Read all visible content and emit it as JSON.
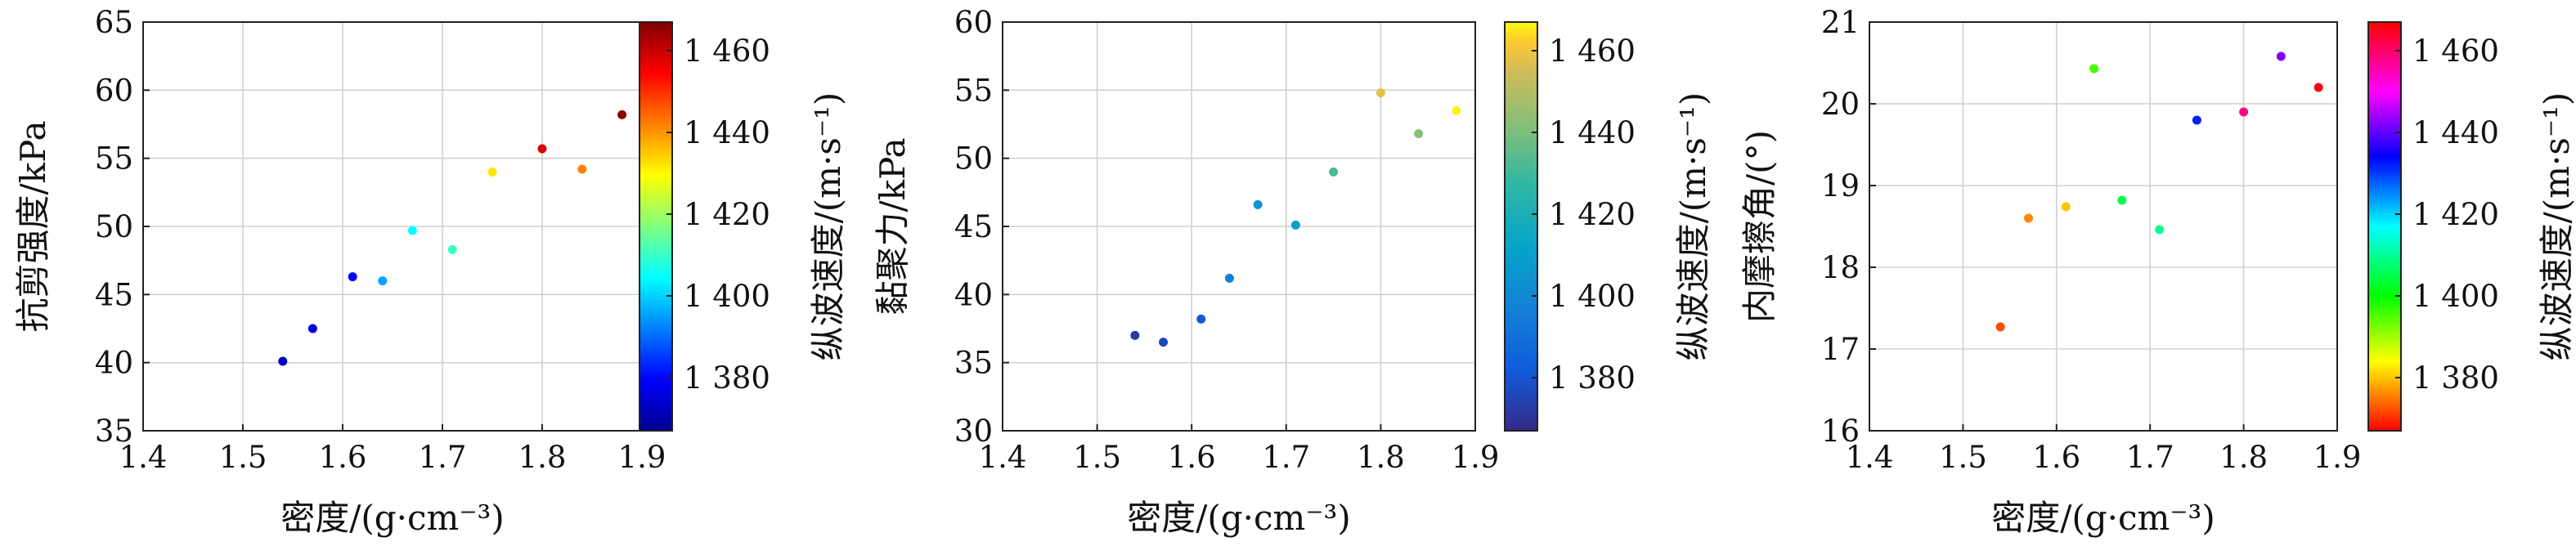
{
  "chart_data": [
    {
      "type": "scatter",
      "xlabel": "密度/(g·cm⁻³)",
      "ylabel": "抗剪强度/kPa",
      "xlim": [
        1.4,
        1.9
      ],
      "ylim": [
        35,
        65
      ],
      "xticks": [
        "1.4",
        "1.5",
        "1.6",
        "1.7",
        "1.8",
        "1.9"
      ],
      "yticks": [
        "35",
        "40",
        "45",
        "50",
        "55",
        "60",
        "65"
      ],
      "grid": true,
      "colormap": "jet",
      "colorbar": {
        "label": "纵波速度/(m·s⁻¹)",
        "range": [
          1367,
          1467
        ],
        "ticks": [
          1380,
          1400,
          1420,
          1440,
          1460
        ],
        "tick_labels": [
          "1 380",
          "1 400",
          "1 420",
          "1 440",
          "1 460"
        ]
      },
      "points": [
        {
          "x": 1.54,
          "y": 40.1,
          "c": 1372
        },
        {
          "x": 1.57,
          "y": 42.5,
          "c": 1376
        },
        {
          "x": 1.61,
          "y": 46.3,
          "c": 1380
        },
        {
          "x": 1.64,
          "y": 46.0,
          "c": 1396
        },
        {
          "x": 1.67,
          "y": 49.7,
          "c": 1405
        },
        {
          "x": 1.71,
          "y": 48.3,
          "c": 1410
        },
        {
          "x": 1.75,
          "y": 54.0,
          "c": 1432
        },
        {
          "x": 1.8,
          "y": 55.7,
          "c": 1458
        },
        {
          "x": 1.84,
          "y": 54.2,
          "c": 1442
        },
        {
          "x": 1.88,
          "y": 58.2,
          "c": 1466
        }
      ]
    },
    {
      "type": "scatter",
      "xlabel": "密度/(g·cm⁻³)",
      "ylabel": "黏聚力/kPa",
      "xlim": [
        1.4,
        1.9
      ],
      "ylim": [
        30,
        60
      ],
      "xticks": [
        "1.4",
        "1.5",
        "1.6",
        "1.7",
        "1.8",
        "1.9"
      ],
      "yticks": [
        "30",
        "35",
        "40",
        "45",
        "50",
        "55",
        "60"
      ],
      "grid": true,
      "colormap": "parula",
      "colorbar": {
        "label": "纵波速度/(m·s⁻¹)",
        "range": [
          1367,
          1467
        ],
        "ticks": [
          1380,
          1400,
          1420,
          1440,
          1460
        ],
        "tick_labels": [
          "1 380",
          "1 400",
          "1 420",
          "1 440",
          "1 460"
        ]
      },
      "points": [
        {
          "x": 1.54,
          "y": 37.0,
          "c": 1372
        },
        {
          "x": 1.57,
          "y": 36.5,
          "c": 1376
        },
        {
          "x": 1.61,
          "y": 38.2,
          "c": 1380
        },
        {
          "x": 1.64,
          "y": 41.2,
          "c": 1396
        },
        {
          "x": 1.67,
          "y": 46.6,
          "c": 1405
        },
        {
          "x": 1.71,
          "y": 45.1,
          "c": 1410
        },
        {
          "x": 1.75,
          "y": 49.0,
          "c": 1432
        },
        {
          "x": 1.8,
          "y": 54.8,
          "c": 1458
        },
        {
          "x": 1.84,
          "y": 51.8,
          "c": 1442
        },
        {
          "x": 1.88,
          "y": 53.5,
          "c": 1466
        }
      ]
    },
    {
      "type": "scatter",
      "xlabel": "密度/(g·cm⁻³)",
      "ylabel": "内摩擦角/(°)",
      "xlim": [
        1.4,
        1.9
      ],
      "ylim": [
        16,
        21
      ],
      "xticks": [
        "1.4",
        "1.5",
        "1.6",
        "1.7",
        "1.8",
        "1.9"
      ],
      "yticks": [
        "16",
        "17",
        "18",
        "19",
        "20",
        "21"
      ],
      "grid": true,
      "colormap": "hsv",
      "colorbar": {
        "label": "纵波速度/(m·s⁻¹)",
        "range": [
          1367,
          1467
        ],
        "ticks": [
          1380,
          1400,
          1420,
          1440,
          1460
        ],
        "tick_labels": [
          "1 380",
          "1 400",
          "1 420",
          "1 440",
          "1 460"
        ]
      },
      "points": [
        {
          "x": 1.54,
          "y": 17.27,
          "c": 1372
        },
        {
          "x": 1.57,
          "y": 18.6,
          "c": 1376
        },
        {
          "x": 1.61,
          "y": 18.74,
          "c": 1380
        },
        {
          "x": 1.64,
          "y": 20.43,
          "c": 1396
        },
        {
          "x": 1.67,
          "y": 18.82,
          "c": 1405
        },
        {
          "x": 1.71,
          "y": 18.46,
          "c": 1410
        },
        {
          "x": 1.75,
          "y": 19.8,
          "c": 1432
        },
        {
          "x": 1.8,
          "y": 19.9,
          "c": 1458
        },
        {
          "x": 1.84,
          "y": 20.58,
          "c": 1442
        },
        {
          "x": 1.88,
          "y": 20.2,
          "c": 1466
        }
      ]
    }
  ]
}
